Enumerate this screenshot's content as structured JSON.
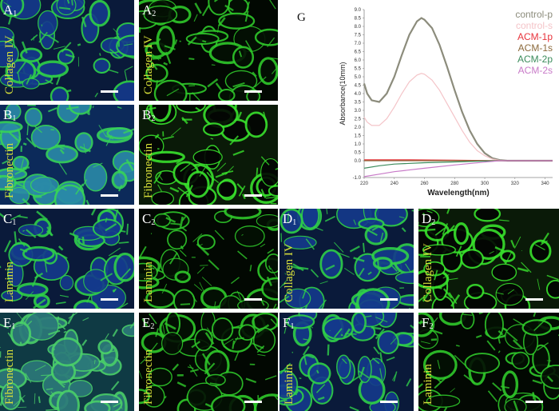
{
  "figure_label": "G",
  "panels": [
    {
      "id": "A1",
      "letter": "A",
      "sub": "1",
      "stain": "Collagen IV",
      "tone": "blue-green"
    },
    {
      "id": "A2",
      "letter": "A",
      "sub": "2",
      "stain": "Collagen IV",
      "tone": "green-dark"
    },
    {
      "id": "B1",
      "letter": "B",
      "sub": "1",
      "stain": "Fibronectin",
      "tone": "cyan-blue"
    },
    {
      "id": "B2",
      "letter": "B",
      "sub": "2",
      "stain": "Fibronectin",
      "tone": "green-bright"
    },
    {
      "id": "C1",
      "letter": "C",
      "sub": "1",
      "stain": "Laminin",
      "tone": "blue-green"
    },
    {
      "id": "C2",
      "letter": "C",
      "sub": "2",
      "stain": "Laminin",
      "tone": "green-dark"
    },
    {
      "id": "D1",
      "letter": "D",
      "sub": "1",
      "stain": "Collagen IV",
      "tone": "blue-green"
    },
    {
      "id": "D2",
      "letter": "D",
      "sub": "2",
      "stain": "Collagen IV",
      "tone": "green-bright"
    },
    {
      "id": "E1",
      "letter": "E",
      "sub": "1",
      "stain": "Fibronectin",
      "tone": "teal"
    },
    {
      "id": "E2",
      "letter": "E",
      "sub": "2",
      "stain": "Fibronectin",
      "tone": "green-dark"
    },
    {
      "id": "F1",
      "letter": "F",
      "sub": "1",
      "stain": "Laminin",
      "tone": "blue-green"
    },
    {
      "id": "F2",
      "letter": "F",
      "sub": "2",
      "stain": "Laminin",
      "tone": "green-dark"
    }
  ],
  "chart_data": {
    "type": "line",
    "xlabel": "Wavelength(nm)",
    "ylabel": "Absorbance(10mm)",
    "xlim": [
      220,
      345
    ],
    "ylim": [
      -1.0,
      9.0
    ],
    "x_ticks": [
      220,
      240,
      260,
      280,
      300,
      320,
      340
    ],
    "y_ticks": [
      -1.0,
      0.0,
      0.5,
      1.0,
      1.5,
      2.0,
      2.5,
      3.0,
      3.5,
      4.0,
      4.5,
      5.0,
      5.5,
      6.0,
      6.5,
      7.0,
      7.5,
      8.0,
      8.5,
      9.0
    ],
    "legend_position": "top-right",
    "series": [
      {
        "name": "control-p",
        "color": "#8c8c7c",
        "x": [
          220,
          222,
          225,
          230,
          235,
          240,
          245,
          250,
          255,
          258,
          260,
          265,
          270,
          275,
          280,
          285,
          290,
          295,
          300,
          305,
          310,
          315,
          320,
          330,
          340,
          345
        ],
        "y": [
          4.6,
          4.0,
          3.6,
          3.5,
          4.0,
          5.0,
          6.3,
          7.5,
          8.3,
          8.5,
          8.4,
          7.9,
          6.9,
          5.6,
          4.2,
          2.9,
          1.8,
          1.0,
          0.45,
          0.15,
          0.04,
          0.0,
          0.0,
          0.0,
          0.0,
          0.0
        ]
      },
      {
        "name": "control-s",
        "color": "#f4c4c8",
        "x": [
          220,
          222,
          225,
          230,
          235,
          240,
          245,
          250,
          255,
          258,
          260,
          265,
          270,
          275,
          280,
          285,
          290,
          295,
          300,
          305,
          310,
          315,
          320,
          330,
          340,
          345
        ],
        "y": [
          2.6,
          2.3,
          2.1,
          2.1,
          2.5,
          3.2,
          4.0,
          4.7,
          5.1,
          5.2,
          5.15,
          4.8,
          4.2,
          3.4,
          2.6,
          1.8,
          1.1,
          0.6,
          0.3,
          0.1,
          0.02,
          0.0,
          0.0,
          0.0,
          0.0,
          0.0
        ]
      },
      {
        "name": "ACM-1p",
        "color": "#e8343c",
        "x": [
          220,
          250,
          280,
          310,
          345
        ],
        "y": [
          0.05,
          0.05,
          0.03,
          0.0,
          0.0
        ]
      },
      {
        "name": "ACM-1s",
        "color": "#8c6a3c",
        "x": [
          220,
          250,
          280,
          310,
          345
        ],
        "y": [
          0.0,
          0.0,
          0.0,
          0.0,
          0.0
        ]
      },
      {
        "name": "ACM-2p",
        "color": "#3c8c5c",
        "x": [
          220,
          230,
          240,
          260,
          280,
          300,
          310,
          345
        ],
        "y": [
          -0.45,
          -0.3,
          -0.2,
          -0.12,
          -0.07,
          -0.02,
          0.0,
          0.0
        ]
      },
      {
        "name": "ACM-2s",
        "color": "#c87ac8",
        "x": [
          220,
          230,
          240,
          260,
          280,
          300,
          310,
          345
        ],
        "y": [
          -0.95,
          -0.8,
          -0.65,
          -0.45,
          -0.25,
          -0.08,
          0.0,
          0.0
        ]
      }
    ]
  }
}
